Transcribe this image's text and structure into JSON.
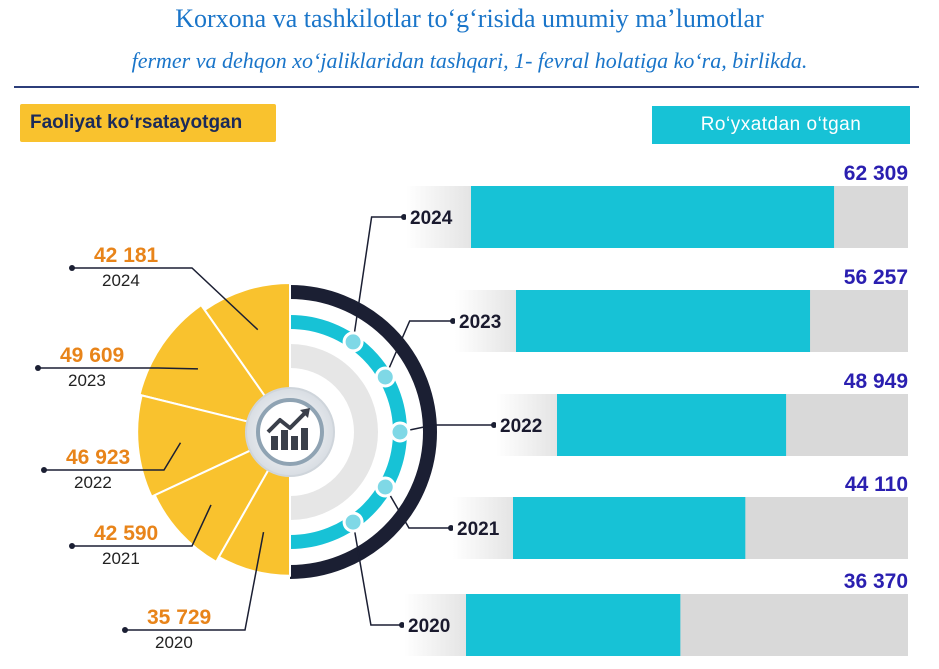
{
  "header": {
    "title": "Korxona va tashkilotlar to‘g‘risida umumiy ma’lumotlar",
    "subtitle": "fermer va dehqon xo‘jaliklaridan tashqari, 1- fevral holatiga ko‘ra, birlikda."
  },
  "legend": {
    "left_label": "Faoliyat ko‘rsatayotgan",
    "right_label": "Ro‘yxatdan o‘tgan"
  },
  "colors": {
    "active": "#f9c22e",
    "registered": "#17c2d6",
    "track": "#d9d9d9",
    "value_text": "#2a1fb0",
    "left_value_text": "#e8841a"
  },
  "icon": "chart-growth-icon",
  "chart_data": [
    {
      "type": "bar",
      "orientation": "horizontal",
      "categories": [
        "2024",
        "2023",
        "2022",
        "2021",
        "2020"
      ],
      "series": [
        {
          "name": "Ro‘yxatdan o‘tgan",
          "values": [
            62309,
            56257,
            48949,
            44110,
            36370
          ]
        }
      ],
      "value_labels": [
        "62 309",
        "56 257",
        "48 949",
        "44 110",
        "36 370"
      ],
      "xlim": [
        0,
        75000
      ]
    },
    {
      "type": "pie",
      "categories": [
        "2024",
        "2023",
        "2022",
        "2021",
        "2020"
      ],
      "series": [
        {
          "name": "Faoliyat ko‘rsatayotgan",
          "values": [
            42181,
            49609,
            46923,
            42590,
            35729
          ]
        }
      ],
      "value_labels": [
        "42 181",
        "49 609",
        "46 923",
        "42 590",
        "35 729"
      ]
    }
  ]
}
